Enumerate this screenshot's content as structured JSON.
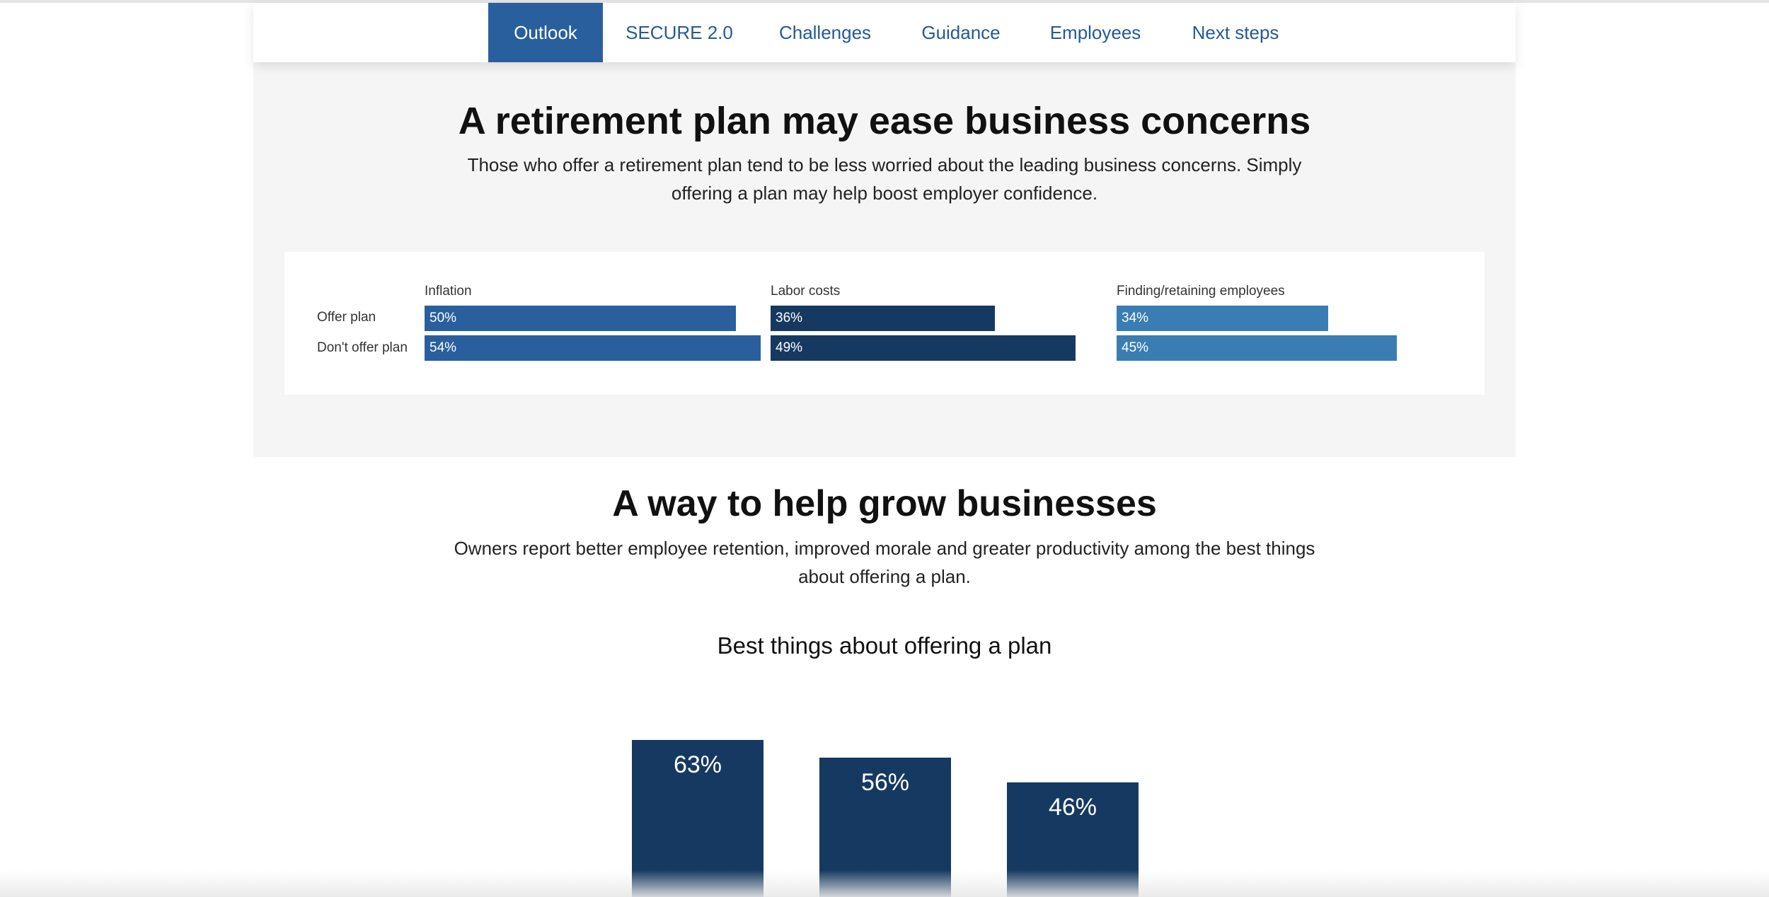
{
  "nav": {
    "tabs": [
      {
        "label": "Outlook",
        "active": true
      },
      {
        "label": "SECURE 2.0",
        "active": false
      },
      {
        "label": "Challenges",
        "active": false
      },
      {
        "label": "Guidance",
        "active": false
      },
      {
        "label": "Employees",
        "active": false
      },
      {
        "label": "Next steps",
        "active": false
      }
    ]
  },
  "section1": {
    "title": "A retirement plan may ease business concerns",
    "subtitle_lines": [
      "Those who offer a retirement plan tend to be less worried about the leading business concerns. Simply",
      "offering a plan may help boost employer confidence."
    ]
  },
  "section2": {
    "title": "A way to help grow businesses",
    "subtitle_lines": [
      "Owners report better employee retention, improved morale and greater productivity among the best things",
      "about offering a plan."
    ]
  },
  "colors": {
    "inflation": "#2a5f9e",
    "labor_costs": "#163961",
    "finding_retaining": "#3a7db3",
    "vbar": "#163961",
    "tab_active_bg": "#2a5f9e",
    "tab_text": "#245a94"
  },
  "chart_data": [
    {
      "type": "bar",
      "orientation": "horizontal",
      "groups": [
        "Inflation",
        "Labor costs",
        "Finding/retaining employees"
      ],
      "categories": [
        "Offer plan",
        "Don't offer plan"
      ],
      "series": [
        {
          "name": "Inflation",
          "values": [
            50,
            54
          ],
          "labels": [
            "50%",
            "54%"
          ]
        },
        {
          "name": "Labor costs",
          "values": [
            36,
            49
          ],
          "labels": [
            "36%",
            "49%"
          ]
        },
        {
          "name": "Finding/retaining employees",
          "values": [
            34,
            45
          ],
          "labels": [
            "34%",
            "45%"
          ]
        }
      ],
      "xlim": [
        0,
        100
      ]
    },
    {
      "type": "bar",
      "title": "Best things about offering a plan",
      "values": [
        63,
        56,
        46
      ],
      "labels": [
        "63%",
        "56%",
        "46%"
      ],
      "ylim": [
        0,
        100
      ]
    }
  ]
}
